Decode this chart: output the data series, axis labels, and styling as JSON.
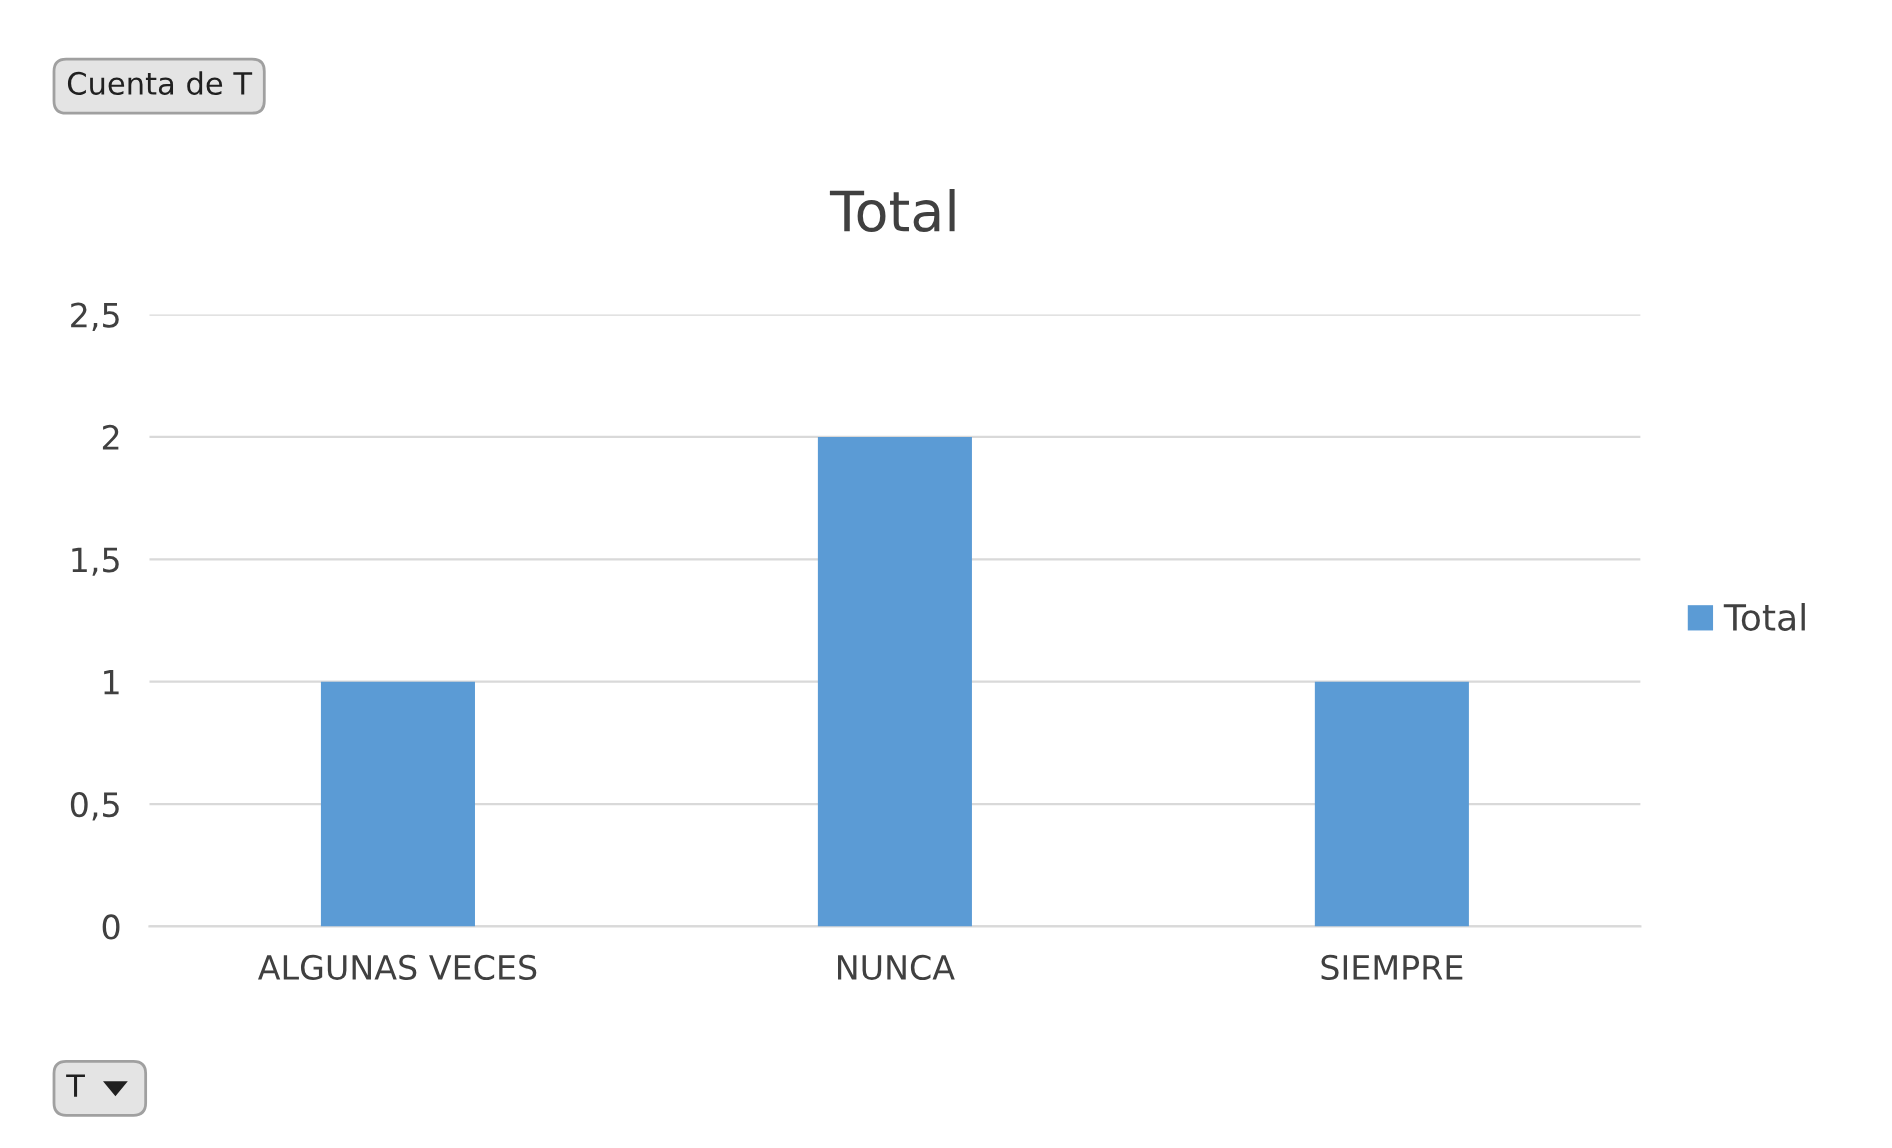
{
  "chart_data": {
    "type": "bar",
    "title": "Total",
    "categories": [
      "ALGUNAS VECES",
      "NUNCA",
      "SIEMPRE"
    ],
    "series": [
      {
        "name": "Total",
        "color": "#5b9bd5",
        "values": [
          1,
          2,
          1
        ]
      }
    ],
    "ylim": [
      0,
      2.5
    ],
    "yticks": [
      0,
      {
        "value": 0.5,
        "label": "0,5"
      },
      1,
      {
        "value": 1.5,
        "label": "1,5"
      },
      2,
      {
        "value": 2.5,
        "label": "2,5"
      }
    ],
    "grid": "y",
    "legend": "right",
    "annotations": [
      "Cuenta de T",
      "T"
    ]
  }
}
